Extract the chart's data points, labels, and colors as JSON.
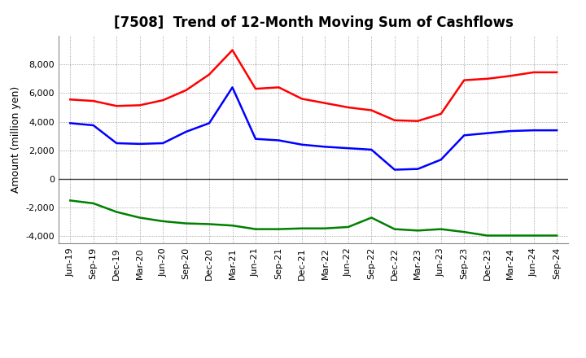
{
  "title": "[7508]  Trend of 12-Month Moving Sum of Cashflows",
  "ylabel": "Amount (million yen)",
  "xlabels": [
    "Jun-19",
    "Sep-19",
    "Dec-19",
    "Mar-20",
    "Jun-20",
    "Sep-20",
    "Dec-20",
    "Mar-21",
    "Jun-21",
    "Sep-21",
    "Dec-21",
    "Mar-22",
    "Jun-22",
    "Sep-22",
    "Dec-22",
    "Mar-23",
    "Jun-23",
    "Sep-23",
    "Dec-23",
    "Mar-24",
    "Jun-24",
    "Sep-24"
  ],
  "operating": [
    5550,
    5450,
    5100,
    5150,
    5500,
    6200,
    7300,
    9000,
    6300,
    6400,
    5600,
    5300,
    5000,
    4800,
    4100,
    4050,
    4550,
    6900,
    7000,
    7200,
    7450,
    7450
  ],
  "investing": [
    -1500,
    -1700,
    -2300,
    -2700,
    -2950,
    -3100,
    -3150,
    -3250,
    -3500,
    -3500,
    -3450,
    -3450,
    -3350,
    -2700,
    -3500,
    -3600,
    -3500,
    -3700,
    -3950,
    -3950,
    -3950,
    -3950
  ],
  "free": [
    3900,
    3750,
    2500,
    2450,
    2500,
    3300,
    3900,
    6400,
    2800,
    2700,
    2400,
    2250,
    2150,
    2050,
    650,
    700,
    1350,
    3050,
    3200,
    3350,
    3400,
    3400
  ],
  "operating_color": "#ff0000",
  "investing_color": "#008000",
  "free_color": "#0000ff",
  "ylim": [
    -4500,
    10000
  ],
  "yticks": [
    -4000,
    -2000,
    0,
    2000,
    4000,
    6000,
    8000
  ],
  "background_color": "#ffffff",
  "grid_color": "#888888",
  "title_fontsize": 12,
  "label_fontsize": 9,
  "tick_fontsize": 8
}
